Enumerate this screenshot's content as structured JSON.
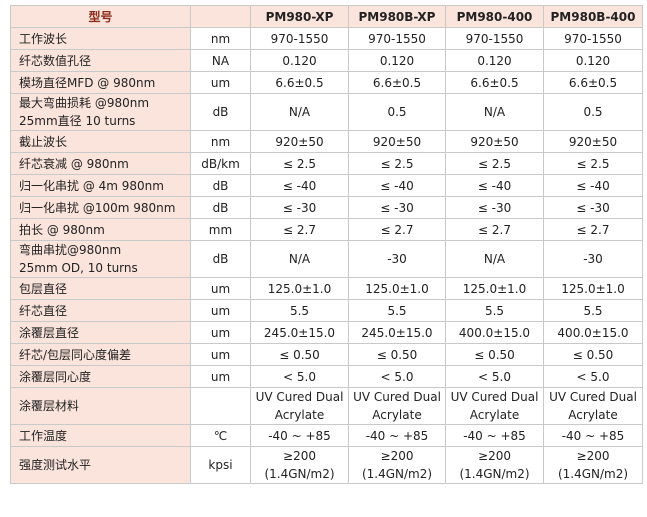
{
  "table": {
    "header": {
      "label": "型号",
      "models": [
        "PM980-XP",
        "PM980B-XP",
        "PM980-400",
        "PM980B-400"
      ]
    },
    "rows": [
      {
        "param": "工作波长",
        "unit": "nm",
        "values": [
          "970-1550",
          "970-1550",
          "970-1550",
          "970-1550"
        ]
      },
      {
        "param": "纤芯数值孔径",
        "unit": "NA",
        "values": [
          "0.120",
          "0.120",
          "0.120",
          "0.120"
        ]
      },
      {
        "param": "模场直径MFD @ 980nm",
        "unit": "um",
        "values": [
          "6.6±0.5",
          "6.6±0.5",
          "6.6±0.5",
          "6.6±0.5"
        ]
      },
      {
        "param": "最大弯曲损耗 @980nm\n25mm直径 10 turns",
        "unit": "dB",
        "values": [
          "N/A",
          "0.5",
          "N/A",
          "0.5"
        ]
      },
      {
        "param": "截止波长",
        "unit": "nm",
        "values": [
          "920±50",
          "920±50",
          "920±50",
          "920±50"
        ]
      },
      {
        "param": "纤芯衰减 @ 980nm",
        "unit": "dB/km",
        "values": [
          "≤ 2.5",
          "≤ 2.5",
          "≤ 2.5",
          "≤ 2.5"
        ]
      },
      {
        "param": "归一化串扰 @ 4m  980nm",
        "unit": "dB",
        "values": [
          "≤ -40",
          "≤ -40",
          "≤ -40",
          "≤ -40"
        ]
      },
      {
        "param": "归一化串扰 @100m  980nm",
        "unit": "dB",
        "values": [
          "≤ -30",
          "≤ -30",
          "≤ -30",
          "≤ -30"
        ]
      },
      {
        "param": "拍长 @ 980nm",
        "unit": "mm",
        "values": [
          "≤ 2.7",
          "≤ 2.7",
          "≤ 2.7",
          "≤ 2.7"
        ]
      },
      {
        "param": "弯曲串扰@980nm\n25mm OD, 10 turns",
        "unit": "dB",
        "values": [
          "N/A",
          "-30",
          "N/A",
          "-30"
        ]
      },
      {
        "param": "包层直径",
        "unit": "um",
        "values": [
          "125.0±1.0",
          "125.0±1.0",
          "125.0±1.0",
          "125.0±1.0"
        ]
      },
      {
        "param": "纤芯直径",
        "unit": "um",
        "values": [
          "5.5",
          "5.5",
          "5.5",
          "5.5"
        ]
      },
      {
        "param": "涂覆层直径",
        "unit": "um",
        "values": [
          "245.0±15.0",
          "245.0±15.0",
          "400.0±15.0",
          "400.0±15.0"
        ]
      },
      {
        "param": "纤芯/包层同心度偏差",
        "unit": "um",
        "values": [
          "≤ 0.50",
          "≤ 0.50",
          "≤ 0.50",
          "≤ 0.50"
        ]
      },
      {
        "param": "涂覆层同心度",
        "unit": "um",
        "values": [
          "< 5.0",
          "< 5.0",
          "< 5.0",
          "< 5.0"
        ]
      },
      {
        "param": "涂覆层材料",
        "unit": null,
        "values": [
          "UV Cured Dual\nAcrylate",
          "UV Cured Dual\nAcrylate",
          "UV Cured Dual\nAcrylate",
          "UV Cured Dual\nAcrylate"
        ]
      },
      {
        "param": "工作温度",
        "unit": "℃",
        "values": [
          "-40 ~ +85",
          "-40 ~ +85",
          "-40 ~ +85",
          "-40 ~ +85"
        ]
      },
      {
        "param": "强度测试水平",
        "unit": "kpsi",
        "values": [
          "≥200\n(1.4GN/m2)",
          "≥200\n(1.4GN/m2)",
          "≥200\n(1.4GN/m2)",
          "≥200\n(1.4GN/m2)"
        ]
      }
    ]
  }
}
